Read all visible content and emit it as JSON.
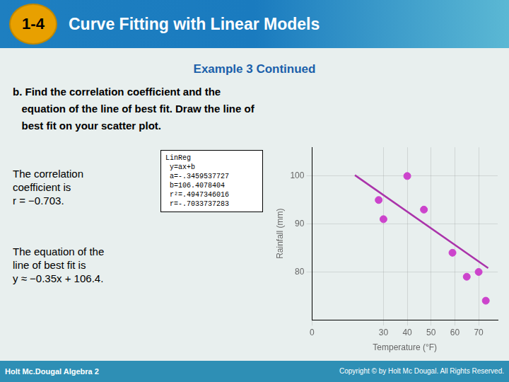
{
  "chart_data": {
    "type": "scatter",
    "badge": "1-4",
    "title": "Curve Fitting with Linear Models",
    "subtitle": "Example 3 Continued",
    "question": [
      "b. Find the correlation coefficient and the",
      "   equation of the line of best fit. Draw the line of",
      "   best fit on your scatter plot."
    ],
    "annotations": [
      "The correlation\ncoefficient is\nr = −0.703.",
      "The equation of the\nline of best fit is\ny ≈ −0.35x + 106.4."
    ],
    "linreg": [
      "LinReg",
      " y=ax+b",
      " a=-.3459537727",
      " b=106.4078404",
      " r²=.4947346016",
      " r=-.7033737283"
    ],
    "footer": [
      "Holt Mc.Dougal Algebra 2",
      "Copyright © by Holt Mc Dougal. All Rights Reserved."
    ],
    "xlabel": "Temperature (°F)",
    "ylabel": "Rainfall (mm)",
    "series": [
      {
        "type": "scatter",
        "color": "#CC44CC",
        "x": [
          28,
          30,
          40,
          47,
          59,
          65,
          70,
          73
        ],
        "values": [
          95,
          91,
          100,
          93,
          84,
          79,
          80,
          74
        ]
      },
      {
        "type": "line",
        "color": "#AA33AA",
        "marker": "none",
        "line_style": "solid",
        "x": [
          18,
          74
        ],
        "values": [
          100.1806724914,
          80.8072612202
        ]
      }
    ],
    "xlim": [
      0,
      78
    ],
    "ylim": [
      70,
      106
    ],
    "xticks": [
      0,
      30,
      40,
      50,
      60,
      70
    ],
    "yticks": [
      80,
      90,
      100
    ],
    "grid": true
  }
}
